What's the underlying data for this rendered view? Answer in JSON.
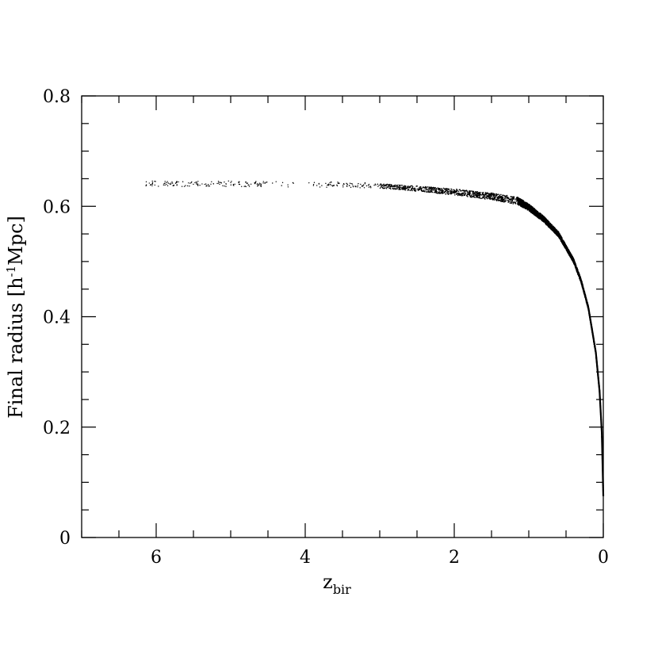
{
  "chart_data": {
    "type": "scatter",
    "title": "",
    "xlabel": {
      "main": "z",
      "sub": "bir"
    },
    "ylabel": {
      "main": "Final radius [h",
      "sup": "-1",
      "rest": "Mpc]"
    },
    "xlim": [
      7,
      0
    ],
    "ylim": [
      0,
      0.8
    ],
    "x_reversed": true,
    "x_ticks": [
      6,
      4,
      2,
      0
    ],
    "x_tick_labels": [
      "6",
      "4",
      "2",
      "0"
    ],
    "x_minor_step": 0.5,
    "y_ticks": [
      0,
      0.2,
      0.4,
      0.6,
      0.8
    ],
    "y_tick_labels": [
      "0",
      "0.2",
      "0.4",
      "0.6",
      "0.8"
    ],
    "y_minor_step": 0.05,
    "grid": false,
    "legend": "none",
    "marker_color": "#000000",
    "trend": [
      {
        "x": 6.15,
        "y": 0.641
      },
      {
        "x": 5.5,
        "y": 0.641
      },
      {
        "x": 5.0,
        "y": 0.641
      },
      {
        "x": 4.5,
        "y": 0.64
      },
      {
        "x": 4.0,
        "y": 0.64
      },
      {
        "x": 3.5,
        "y": 0.639
      },
      {
        "x": 3.0,
        "y": 0.637
      },
      {
        "x": 2.5,
        "y": 0.632
      },
      {
        "x": 2.0,
        "y": 0.626
      },
      {
        "x": 1.5,
        "y": 0.618
      },
      {
        "x": 1.15,
        "y": 0.61
      },
      {
        "x": 1.0,
        "y": 0.598
      },
      {
        "x": 0.8,
        "y": 0.577
      },
      {
        "x": 0.6,
        "y": 0.549
      },
      {
        "x": 0.4,
        "y": 0.502
      },
      {
        "x": 0.3,
        "y": 0.466
      },
      {
        "x": 0.2,
        "y": 0.416
      },
      {
        "x": 0.1,
        "y": 0.335
      },
      {
        "x": 0.05,
        "y": 0.265
      },
      {
        "x": 0.02,
        "y": 0.19
      },
      {
        "x": 0.0,
        "y": 0.075
      }
    ]
  }
}
